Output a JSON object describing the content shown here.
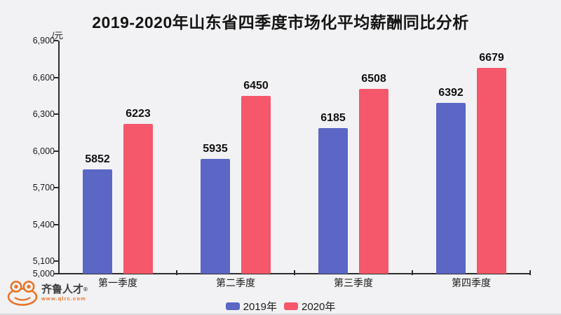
{
  "chart_data": {
    "type": "bar",
    "title": "2019-2020年山东省四季度市场化平均薪酬同比分析",
    "categories": [
      "第一季度",
      "第二季度",
      "第三季度",
      "第四季度"
    ],
    "series": [
      {
        "name": "2019年",
        "color": "#5a67c5",
        "values": [
          5852,
          5935,
          6185,
          6392
        ]
      },
      {
        "name": "2020年",
        "color": "#f5576b",
        "values": [
          6223,
          6450,
          6508,
          6679
        ]
      }
    ],
    "xlabel": "",
    "ylabel": "/元",
    "ylim": [
      5000,
      6900
    ],
    "yticks": [
      5000,
      5100,
      5400,
      5700,
      6000,
      6300,
      6600,
      6900
    ],
    "grid": false,
    "legend_position": "bottom",
    "value_labels": true
  },
  "watermark": {
    "brand": "齐鲁人才",
    "registered": "®",
    "website": "www.qlrc.com"
  },
  "colors": {
    "background": "#f2f2f4",
    "axis": "#2d2d2d",
    "text": "#1a1a1a",
    "series_2019": "#5a67c5",
    "series_2020": "#f5576b",
    "logo_orange": "#e97428"
  }
}
